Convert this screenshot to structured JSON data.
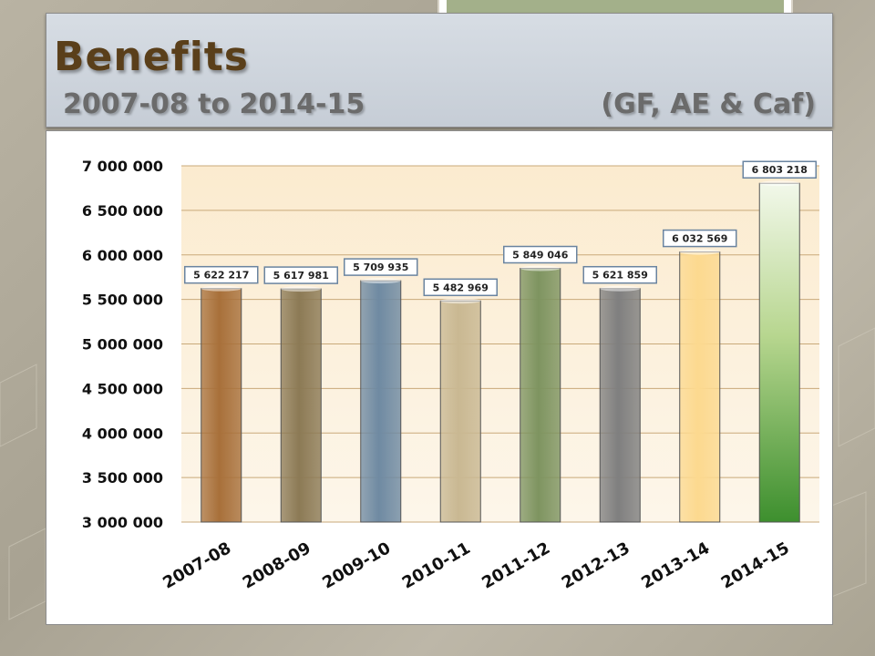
{
  "slide": {
    "title": "Benefits",
    "subtitle_left": "2007-08 to 2014-15",
    "subtitle_right": "(GF, AE & Caf)"
  },
  "chart_data": {
    "type": "bar",
    "categories": [
      "2007-08",
      "2008-09",
      "2009-10",
      "2010-11",
      "2011-12",
      "2012-13",
      "2013-14",
      "2014-15"
    ],
    "values": [
      5622217,
      5617981,
      5709935,
      5482969,
      5849046,
      5621859,
      6032569,
      6803218
    ],
    "data_labels": [
      "5 622 217",
      "5 617 981",
      "5 709 935",
      "5 482 969",
      "5 849 046",
      "5 621 859",
      "6 032 569",
      "6 803 218"
    ],
    "bar_colors": [
      "#a8703a",
      "#8c7a55",
      "#6f8aa2",
      "#c9b892",
      "#7e9460",
      "#7f7f7f",
      "#fcd98f",
      "#3d8f2e"
    ],
    "ylim": [
      3000000,
      7000000
    ],
    "yticks": [
      3000000,
      3500000,
      4000000,
      4500000,
      5000000,
      5500000,
      6000000,
      6500000,
      7000000
    ],
    "ytick_labels": [
      "3 000 000",
      "3 500 000",
      "4 000 000",
      "4 500 000",
      "5 000 000",
      "5 500 000",
      "6 000 000",
      "6 500 000",
      "7 000 000"
    ],
    "grid": true,
    "xlabel": "",
    "ylabel": ""
  }
}
